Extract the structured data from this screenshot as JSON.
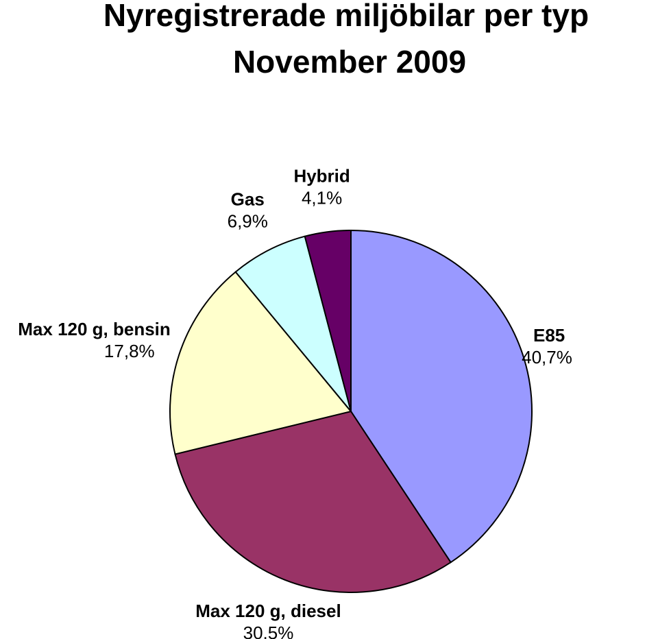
{
  "chart_data": {
    "type": "pie",
    "title": "Nyregistrerade miljöbilar per typ",
    "subtitle": "November 2009",
    "categories": [
      "E85",
      "Max 120 g, diesel",
      "Max 120 g, bensin",
      "Gas",
      "Hybrid"
    ],
    "values": [
      40.7,
      30.5,
      17.8,
      6.9,
      4.1
    ],
    "value_labels": [
      "40,7%",
      "30,5%",
      "17,8%",
      "6,9%",
      "4,1%"
    ],
    "colors": [
      "#9999ff",
      "#993366",
      "#ffffcc",
      "#ccffff",
      "#660066"
    ]
  }
}
